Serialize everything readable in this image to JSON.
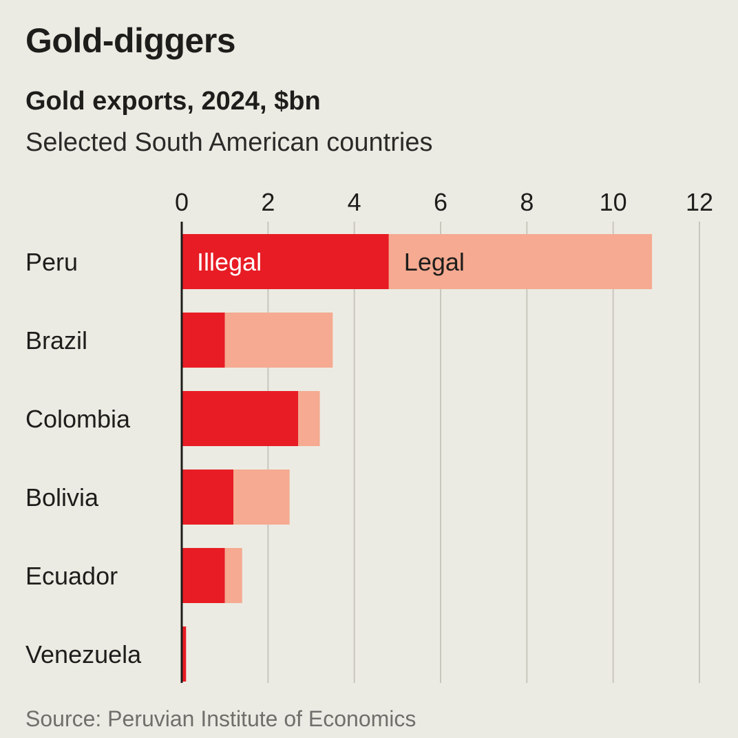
{
  "title": "Gold-diggers",
  "subtitle": "Gold exports, 2024, $bn",
  "subtitle2": "Selected South American countries",
  "source": "Source: Peruvian Institute of Economics",
  "colors": {
    "illegal": "#e81c24",
    "legal": "#f5aa91",
    "grid": "#c8c7bd",
    "axis": "#1d1d1b",
    "background": "#ecebe3"
  },
  "chart_data": {
    "type": "bar",
    "orientation": "horizontal",
    "stacked": true,
    "title": "Gold-diggers",
    "subtitle": "Gold exports, 2024, $bn",
    "categories": [
      "Peru",
      "Brazil",
      "Colombia",
      "Bolivia",
      "Ecuador",
      "Venezuela"
    ],
    "series": [
      {
        "name": "Illegal",
        "values": [
          4.8,
          1.0,
          2.7,
          1.2,
          1.0,
          0.1
        ]
      },
      {
        "name": "Legal",
        "values": [
          6.1,
          2.5,
          0.5,
          1.3,
          0.4,
          0.0
        ]
      }
    ],
    "xlim": [
      0,
      12
    ],
    "xticks": [
      "0",
      "2",
      "4",
      "6",
      "8",
      "10",
      "12"
    ],
    "tick_values": [
      0,
      2,
      4,
      6,
      8,
      10,
      12
    ],
    "segment_labels": [
      "Illegal",
      "Legal"
    ],
    "grid": true,
    "legend": "inline-first-bar"
  }
}
